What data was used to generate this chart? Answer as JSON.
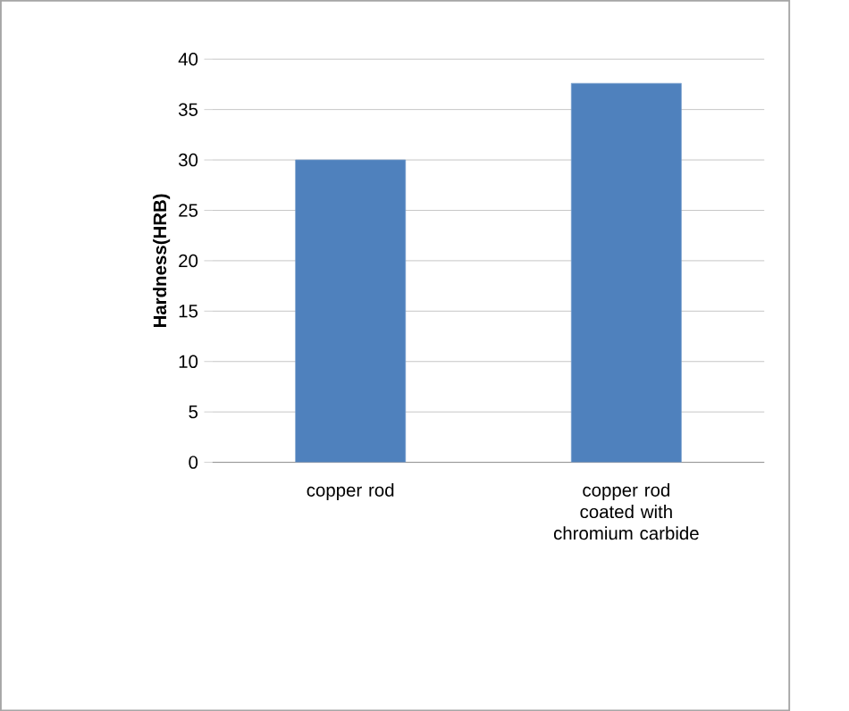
{
  "chart_data": {
    "type": "bar",
    "ylabel": "Hardness(HRB)",
    "categories": [
      "copper rod",
      "copper rod coated with chromium carbide"
    ],
    "values": [
      30,
      37.6
    ],
    "color": "#4f81bd",
    "ylim": [
      0,
      40
    ],
    "yticks": [
      0,
      5,
      10,
      15,
      20,
      25,
      30,
      35,
      40
    ],
    "grid": "y"
  }
}
